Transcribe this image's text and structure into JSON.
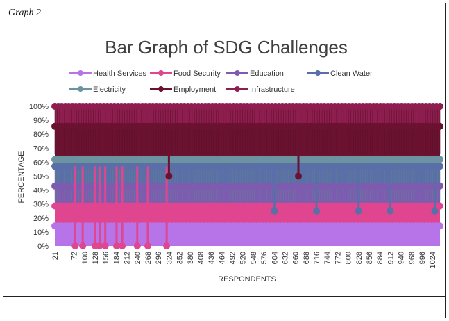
{
  "caption": "Graph 2",
  "chart_data": {
    "type": "area",
    "title": "Bar Graph of SDG Challenges",
    "xlabel": "RESPONDENTS",
    "ylabel": "PERCENTAGE",
    "yticks": [
      "0%",
      "10%",
      "20%",
      "30%",
      "40%",
      "50%",
      "60%",
      "70%",
      "80%",
      "90%",
      "100%"
    ],
    "ylim": [
      0,
      100
    ],
    "xlim": [
      21,
      1044
    ],
    "xticks": [
      21,
      72,
      100,
      128,
      156,
      184,
      212,
      240,
      268,
      296,
      324,
      352,
      380,
      408,
      436,
      464,
      492,
      520,
      548,
      576,
      604,
      632,
      660,
      688,
      716,
      744,
      772,
      800,
      828,
      856,
      884,
      912,
      940,
      968,
      996,
      1024
    ],
    "legend_position": "top",
    "series": [
      {
        "name": "Health Services",
        "color": "#b774e8",
        "upper": 14.3
      },
      {
        "name": "Food Security",
        "color": "#e0468f",
        "upper": 28.6
      },
      {
        "name": "Education",
        "color": "#7d5cb0",
        "upper": 42.9
      },
      {
        "name": "Clean Water",
        "color": "#5a6fa8",
        "upper": 57.1
      },
      {
        "name": "Electricity",
        "color": "#6b93a0",
        "upper": 62.0
      },
      {
        "name": "Employment",
        "color": "#6a1230",
        "upper": 85.7
      },
      {
        "name": "Infrastructure",
        "color": "#8e1e4f",
        "upper": 100
      }
    ],
    "dips": [
      {
        "x": 75,
        "level": 0
      },
      {
        "x": 95,
        "level": 0
      },
      {
        "x": 128,
        "level": 0
      },
      {
        "x": 140,
        "level": 0
      },
      {
        "x": 155,
        "level": 0
      },
      {
        "x": 185,
        "level": 0
      },
      {
        "x": 200,
        "level": 0
      },
      {
        "x": 240,
        "level": 0
      },
      {
        "x": 268,
        "level": 0
      },
      {
        "x": 318,
        "level": 0
      },
      {
        "x": 324,
        "level": 50
      },
      {
        "x": 668,
        "level": 50
      },
      {
        "x": 604,
        "level": 25
      },
      {
        "x": 716,
        "level": 25
      },
      {
        "x": 828,
        "level": 25
      },
      {
        "x": 912,
        "level": 25
      },
      {
        "x": 1030,
        "level": 25
      }
    ]
  }
}
